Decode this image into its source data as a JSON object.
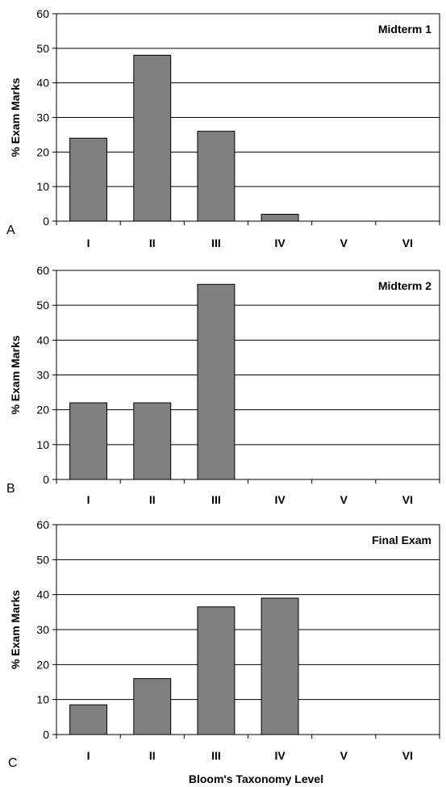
{
  "chart_data": [
    {
      "type": "bar",
      "panel": "A",
      "title": "Midterm 1",
      "ylabel": "% Exam Marks",
      "xlabel": "",
      "ylim": [
        0,
        60
      ],
      "yticks": [
        "0",
        "10",
        "20",
        "30",
        "40",
        "50",
        "60"
      ],
      "grid": true,
      "categories": [
        "I",
        "II",
        "III",
        "IV",
        "V",
        "VI"
      ],
      "values": [
        24,
        48,
        26,
        2,
        0,
        0
      ],
      "bar_color": "#808080"
    },
    {
      "type": "bar",
      "panel": "B",
      "title": "Midterm 2",
      "ylabel": "% Exam Marks",
      "xlabel": "",
      "ylim": [
        0,
        60
      ],
      "yticks": [
        "0",
        "10",
        "20",
        "30",
        "40",
        "50",
        "60"
      ],
      "grid": true,
      "categories": [
        "I",
        "II",
        "III",
        "IV",
        "V",
        "VI"
      ],
      "values": [
        22,
        22,
        56,
        0,
        0,
        0
      ],
      "bar_color": "#808080"
    },
    {
      "type": "bar",
      "panel": "C",
      "title": "Final Exam",
      "ylabel": "% Exam Marks",
      "xlabel": "Bloom's Taxonomy Level",
      "ylim": [
        0,
        60
      ],
      "yticks": [
        "0",
        "10",
        "20",
        "30",
        "40",
        "50",
        "60"
      ],
      "grid": true,
      "categories": [
        "I",
        "II",
        "III",
        "IV",
        "V",
        "VI"
      ],
      "values": [
        8.5,
        16,
        36.5,
        39,
        0,
        0
      ],
      "bar_color": "#808080"
    }
  ]
}
